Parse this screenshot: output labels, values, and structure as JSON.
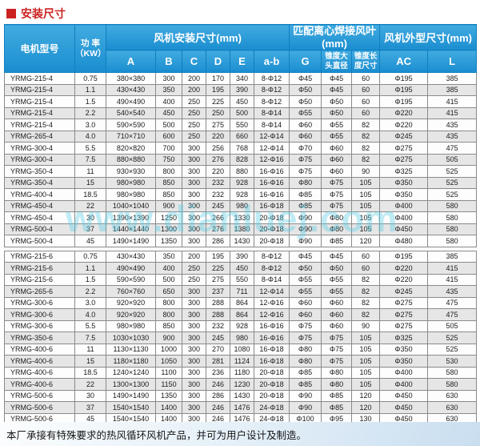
{
  "page": {
    "title": "安装尺寸",
    "footer_note": "本厂承接有特殊要求的热风循环风机产品，并可为用户设计及制造。",
    "watermark": "www.dianluej.com"
  },
  "colors": {
    "title_red": "#cc2222",
    "header_blue_top": "#41abe0",
    "header_blue_bottom": "#1a8dd0",
    "row_alt": "#e6e6e6",
    "border_gray": "#8a8a8a",
    "watermark_cyan": "rgba(90,205,230,0.38)"
  },
  "table": {
    "header": {
      "model": "电机型号",
      "power_line1": "功 率",
      "power_line2": "（KW）",
      "group_install": "风机安装尺寸(mm)",
      "install_cols": [
        "A",
        "B",
        "C",
        "D",
        "E",
        "a-b"
      ],
      "group_blade_line1": "匹配离心焊接风叶",
      "group_blade_line2": "(mm)",
      "blade_col_g": "G",
      "taper_dia_line1": "锥度大",
      "taper_dia_line2": "头直径",
      "taper_len_line1": "锥度长",
      "taper_len_line2": "度尺寸",
      "group_outline": "风机外型尺寸(mm)",
      "outline_cols": [
        "AC",
        "L"
      ]
    },
    "blocks": [
      {
        "rows": [
          [
            "YRMG-215-4",
            "0.75",
            "380×380",
            "300",
            "200",
            "170",
            "340",
            "8-Φ12",
            "Φ45",
            "Φ45",
            "60",
            "Φ195",
            "385"
          ],
          [
            "YRMG-215-4",
            "1.1",
            "430×430",
            "350",
            "200",
            "195",
            "390",
            "8-Φ12",
            "Φ50",
            "Φ45",
            "60",
            "Φ195",
            "385"
          ],
          [
            "YRMG-215-4",
            "1.5",
            "490×490",
            "400",
            "250",
            "225",
            "450",
            "8-Φ12",
            "Φ50",
            "Φ50",
            "60",
            "Φ195",
            "415"
          ],
          [
            "YRMG-215-4",
            "2.2",
            "540×540",
            "450",
            "250",
            "250",
            "500",
            "8-Φ14",
            "Φ55",
            "Φ50",
            "60",
            "Φ220",
            "415"
          ],
          [
            "YRMG-215-4",
            "3.0",
            "590×590",
            "500",
            "250",
            "275",
            "550",
            "8-Φ14",
            "Φ60",
            "Φ55",
            "82",
            "Φ220",
            "435"
          ],
          [
            "YRMG-265-4",
            "4.0",
            "710×710",
            "600",
            "250",
            "220",
            "660",
            "12-Φ14",
            "Φ60",
            "Φ55",
            "82",
            "Φ245",
            "435"
          ],
          [
            "YRMG-300-4",
            "5.5",
            "820×820",
            "700",
            "300",
            "256",
            "768",
            "12-Φ14",
            "Φ70",
            "Φ60",
            "82",
            "Φ275",
            "475"
          ],
          [
            "YRMG-300-4",
            "7.5",
            "880×880",
            "750",
            "300",
            "276",
            "828",
            "12-Φ16",
            "Φ75",
            "Φ60",
            "82",
            "Φ275",
            "505"
          ],
          [
            "YRMG-350-4",
            "11",
            "930×930",
            "800",
            "300",
            "220",
            "880",
            "16-Φ16",
            "Φ75",
            "Φ60",
            "90",
            "Φ325",
            "525"
          ],
          [
            "YRMG-350-4",
            "15",
            "980×980",
            "850",
            "300",
            "232",
            "928",
            "16-Φ16",
            "Φ80",
            "Φ75",
            "105",
            "Φ350",
            "525"
          ],
          [
            "YRMG-400-4",
            "18.5",
            "980×980",
            "850",
            "300",
            "232",
            "928",
            "16-Φ16",
            "Φ85",
            "Φ75",
            "105",
            "Φ350",
            "525"
          ],
          [
            "YRMG-450-4",
            "22",
            "1040×1040",
            "900",
            "300",
            "245",
            "980",
            "16-Φ18",
            "Φ85",
            "Φ75",
            "105",
            "Φ400",
            "580"
          ],
          [
            "YRMG-450-4",
            "30",
            "1390×1390",
            "1250",
            "300",
            "266",
            "1330",
            "20-Φ18",
            "Φ90",
            "Φ80",
            "105",
            "Φ400",
            "580"
          ],
          [
            "YRMG-500-4",
            "37",
            "1440×1440",
            "1300",
            "300",
            "276",
            "1380",
            "20-Φ18",
            "Φ90",
            "Φ80",
            "105",
            "Φ450",
            "580"
          ],
          [
            "YRMG-500-4",
            "45",
            "1490×1490",
            "1350",
            "300",
            "286",
            "1430",
            "20-Φ18",
            "Φ90",
            "Φ85",
            "120",
            "Φ480",
            "580"
          ]
        ]
      },
      {
        "rows": [
          [
            "YRMG-215-6",
            "0.75",
            "430×430",
            "350",
            "200",
            "195",
            "390",
            "8-Φ12",
            "Φ45",
            "Φ45",
            "60",
            "Φ195",
            "385"
          ],
          [
            "YRMG-215-6",
            "1.1",
            "490×490",
            "400",
            "250",
            "225",
            "450",
            "8-Φ12",
            "Φ50",
            "Φ50",
            "60",
            "Φ220",
            "415"
          ],
          [
            "YRMG-215-6",
            "1.5",
            "590×590",
            "500",
            "250",
            "275",
            "550",
            "8-Φ14",
            "Φ55",
            "Φ55",
            "82",
            "Φ220",
            "415"
          ],
          [
            "YRMG-265-6",
            "2.2",
            "760×760",
            "650",
            "300",
            "237",
            "711",
            "12-Φ14",
            "Φ55",
            "Φ55",
            "82",
            "Φ245",
            "435"
          ],
          [
            "YRMG-300-6",
            "3.0",
            "920×920",
            "800",
            "300",
            "288",
            "864",
            "12-Φ16",
            "Φ60",
            "Φ60",
            "82",
            "Φ275",
            "475"
          ],
          [
            "YRMG-300-6",
            "4.0",
            "920×920",
            "800",
            "300",
            "288",
            "864",
            "12-Φ16",
            "Φ60",
            "Φ60",
            "82",
            "Φ275",
            "475"
          ],
          [
            "YRMG-300-6",
            "5.5",
            "980×980",
            "850",
            "300",
            "232",
            "928",
            "16-Φ16",
            "Φ75",
            "Φ60",
            "90",
            "Φ275",
            "505"
          ],
          [
            "YRMG-350-6",
            "7.5",
            "1030×1030",
            "900",
            "300",
            "245",
            "980",
            "16-Φ16",
            "Φ75",
            "Φ75",
            "105",
            "Φ325",
            "525"
          ],
          [
            "YRMG-400-6",
            "11",
            "1130×1130",
            "1000",
            "300",
            "270",
            "1080",
            "16-Φ18",
            "Φ80",
            "Φ75",
            "105",
            "Φ350",
            "525"
          ],
          [
            "YRMG-400-6",
            "15",
            "1180×1180",
            "1050",
            "300",
            "281",
            "1124",
            "16-Φ18",
            "Φ80",
            "Φ75",
            "105",
            "Φ350",
            "530"
          ],
          [
            "YRMG-400-6",
            "18.5",
            "1240×1240",
            "1100",
            "300",
            "236",
            "1180",
            "20-Φ18",
            "Φ85",
            "Φ80",
            "105",
            "Φ400",
            "580"
          ],
          [
            "YRMG-400-6",
            "22",
            "1300×1300",
            "1150",
            "300",
            "246",
            "1230",
            "20-Φ18",
            "Φ85",
            "Φ80",
            "105",
            "Φ400",
            "580"
          ],
          [
            "YRMG-500-6",
            "30",
            "1490×1490",
            "1350",
            "300",
            "286",
            "1430",
            "20-Φ18",
            "Φ90",
            "Φ85",
            "120",
            "Φ450",
            "630"
          ],
          [
            "YRMG-500-6",
            "37",
            "1540×1540",
            "1400",
            "300",
            "246",
            "1476",
            "24-Φ18",
            "Φ90",
            "Φ85",
            "120",
            "Φ450",
            "630"
          ],
          [
            "YRMG-500-6",
            "45",
            "1540×1540",
            "1400",
            "300",
            "246",
            "1476",
            "24-Φ18",
            "Φ100",
            "Φ95",
            "130",
            "Φ450",
            "630"
          ]
        ]
      }
    ]
  }
}
